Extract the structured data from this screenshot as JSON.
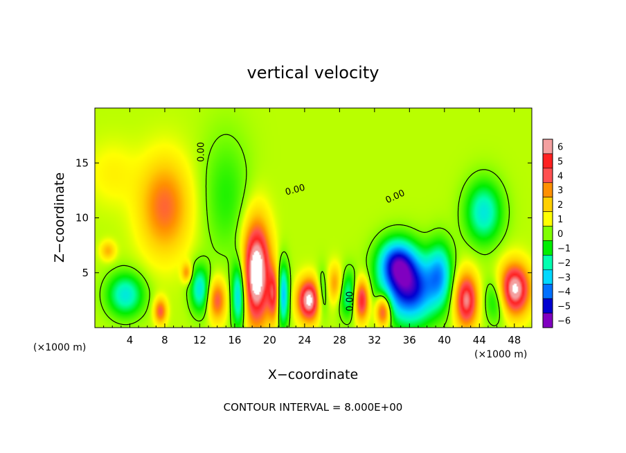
{
  "chart_data": {
    "type": "heatmap",
    "title": "vertical velocity",
    "xlabel": "X−coordinate",
    "ylabel": "Z−coordinate",
    "x_unit_label": "(×1000 m)",
    "x_unit_label_right": "(×1000 m)",
    "footer": "CONTOUR INTERVAL = 8.000E+00",
    "xlim": [
      0,
      50
    ],
    "ylim": [
      0,
      20
    ],
    "x_ticks": [
      4,
      8,
      12,
      16,
      20,
      24,
      28,
      32,
      36,
      40,
      44,
      48
    ],
    "y_ticks": [
      5,
      10,
      15
    ],
    "colorbar": {
      "levels": [
        6,
        5,
        4,
        3,
        2,
        1,
        0,
        -1,
        -2,
        -3,
        -4,
        -5,
        -6
      ],
      "labels": [
        "6",
        "5",
        "4",
        "3",
        "2",
        "1",
        "0",
        "−1",
        "−2",
        "−3",
        "−4",
        "−5",
        "−6"
      ],
      "colors": [
        "#f4a0a0",
        "#ff2020",
        "#ff5050",
        "#ff9000",
        "#ffd000",
        "#ffff00",
        "#80ff00",
        "#00ee00",
        "#00ffb0",
        "#00d8ff",
        "#0070ff",
        "#0000d0",
        "#8000c0"
      ]
    },
    "contour_labels": [
      "0.00",
      "0.00",
      "0.00",
      "0.00"
    ],
    "features": [
      {
        "x": 8.0,
        "z": 11.0,
        "value": 3.2,
        "sx": 2.0,
        "sz": 3.0
      },
      {
        "x": 18.5,
        "z": 5.0,
        "value": 7.5,
        "sx": 1.1,
        "sz": 3.2
      },
      {
        "x": 24.5,
        "z": 2.5,
        "value": 6.5,
        "sx": 0.9,
        "sz": 1.3
      },
      {
        "x": 48.0,
        "z": 3.5,
        "value": 6.5,
        "sx": 1.2,
        "sz": 1.6
      },
      {
        "x": 42.5,
        "z": 2.5,
        "value": 5.5,
        "sx": 0.9,
        "sz": 1.7
      },
      {
        "x": 30.5,
        "z": 2.5,
        "value": 5.0,
        "sx": 0.6,
        "sz": 1.3
      },
      {
        "x": 33.0,
        "z": 1.5,
        "value": 4.5,
        "sx": 0.6,
        "sz": 1.0
      },
      {
        "x": 14.0,
        "z": 2.5,
        "value": 3.5,
        "sx": 0.7,
        "sz": 1.3
      },
      {
        "x": 20.5,
        "z": 3.0,
        "value": 4.0,
        "sx": 0.45,
        "sz": 1.6
      },
      {
        "x": 27.5,
        "z": 4.0,
        "value": 2.5,
        "sx": 0.6,
        "sz": 1.2
      },
      {
        "x": 7.5,
        "z": 1.5,
        "value": 3.5,
        "sx": 0.5,
        "sz": 0.8
      },
      {
        "x": 1.5,
        "z": 7.0,
        "value": 2.0,
        "sx": 0.6,
        "sz": 0.6
      },
      {
        "x": 10.5,
        "z": 5.0,
        "value": 2.5,
        "sx": 0.4,
        "sz": 0.6
      },
      {
        "x": 36.0,
        "z": 3.5,
        "value": -5.5,
        "sx": 2.2,
        "sz": 2.2
      },
      {
        "x": 34.5,
        "z": 6.0,
        "value": -4.0,
        "sx": 1.5,
        "sz": 1.5
      },
      {
        "x": 39.5,
        "z": 5.0,
        "value": -3.0,
        "sx": 1.0,
        "sz": 2.0
      },
      {
        "x": 44.5,
        "z": 10.5,
        "value": -3.0,
        "sx": 1.5,
        "sz": 2.0
      },
      {
        "x": 16.5,
        "z": 3.0,
        "value": -4.0,
        "sx": 0.6,
        "sz": 2.2
      },
      {
        "x": 21.5,
        "z": 3.0,
        "value": -4.0,
        "sx": 0.5,
        "sz": 2.0
      },
      {
        "x": 3.5,
        "z": 3.0,
        "value": -3.0,
        "sx": 1.5,
        "sz": 1.4
      },
      {
        "x": 12.0,
        "z": 3.5,
        "value": -3.0,
        "sx": 0.8,
        "sz": 1.5
      },
      {
        "x": 29.0,
        "z": 3.0,
        "value": -2.5,
        "sx": 0.8,
        "sz": 1.5
      },
      {
        "x": 26.0,
        "z": 3.0,
        "value": -2.0,
        "sx": 0.5,
        "sz": 1.5
      },
      {
        "x": 46.0,
        "z": 2.5,
        "value": -2.0,
        "sx": 1.0,
        "sz": 1.5
      },
      {
        "x": 15.0,
        "z": 12.0,
        "value": -1.2,
        "sx": 2.0,
        "sz": 4.0
      },
      {
        "x": 2.0,
        "z": 14.0,
        "value": 0.8,
        "sx": 2.0,
        "sz": 2.0
      }
    ]
  }
}
